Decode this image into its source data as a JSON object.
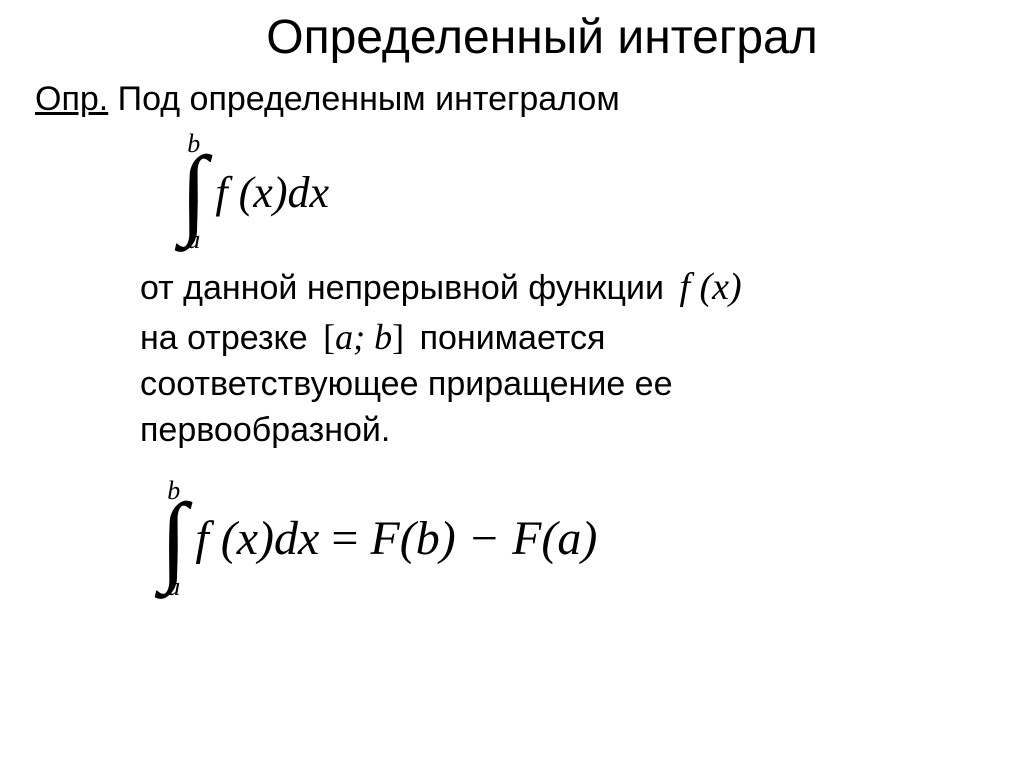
{
  "colors": {
    "background": "#ffffff",
    "text": "#000000"
  },
  "title": "Определенный интеграл",
  "def_label": "Опр.",
  "def_text": " Под определенным интегралом",
  "integral1": {
    "upper": "b",
    "lower": "a",
    "integrand": "f (x)dx"
  },
  "body": {
    "line1_a": " от данной непрерывной функции ",
    "line1_math": "f (x)",
    "line2_a": "на отрезке ",
    "line2_math_a": "[",
    "line2_math_content": "a; b",
    "line2_math_b": "]",
    "line2_b": "  понимается",
    "line3": " соответствующее приращение ее",
    "line4": " первообразной."
  },
  "integral2": {
    "upper": "b",
    "lower": "a",
    "lhs": "f (x)dx",
    "eq": " = ",
    "rhs": "F(b) − F(a)"
  },
  "typography": {
    "title_fontsize": 48,
    "body_fontsize": 34,
    "math_fontsize": 44,
    "formula_fontsize": 48,
    "font_body": "Arial",
    "font_math": "Times New Roman"
  }
}
